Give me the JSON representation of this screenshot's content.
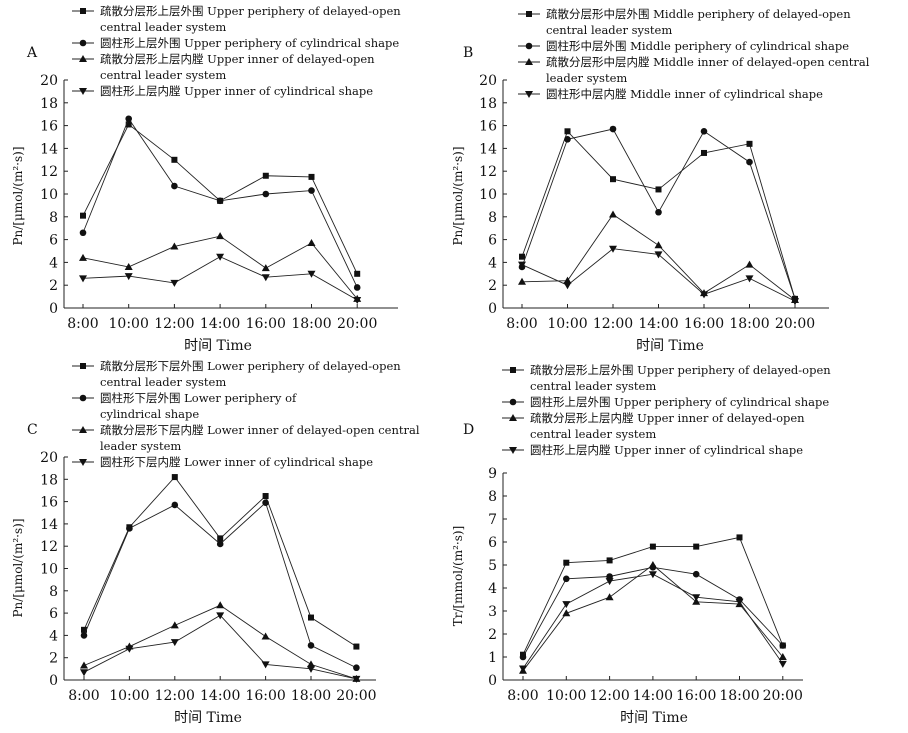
{
  "panels": [
    {
      "letter": "A",
      "xlabel": "时间 Time",
      "ylabel": "Pn/[μmol/(m²·s)]",
      "legend": [
        "疏散分层形上层外围 Upper periphery of delayed-open",
        "central leader system",
        "圆柱形上层外围 Upper periphery of cylindrical shape",
        "疏散分层形上层内膛 Upper inner of delayed-open",
        "central leader system",
        "圆柱形上层内膛 Upper inner of cylindrical shape"
      ]
    },
    {
      "letter": "B",
      "xlabel": "时间 Time",
      "ylabel": "Pn/[μmol/(m²·s)]",
      "legend": [
        "疏散分层形中层外围 Middle periphery of delayed-open",
        "central leader system",
        "圆柱形中层外围 Middle periphery of cylindrical shape",
        "疏散分层形中层内膛 Middle inner of delayed-open central",
        "leader system",
        "圆柱形中层内膛 Middle inner of cylindrical shape"
      ]
    },
    {
      "letter": "C",
      "xlabel": "时间 Time",
      "ylabel": "Pn/[μmol/(m²·s)]",
      "legend": [
        "疏散分层形下层外围 Lower periphery of delayed-open",
        "central leader system",
        "圆柱形下层外围 Lower periphery of",
        "cylindrical shape",
        "疏散分层形下层内膛 Lower inner of delayed-open central",
        "leader system",
        "圆柱形下层内膛 Lower inner of cylindrical shape"
      ]
    },
    {
      "letter": "D",
      "xlabel": "时间 Time",
      "ylabel": "Tr/[mmol/(m²·s)]",
      "legend": [
        "疏散分层形上层外围 Upper periphery of delayed-open",
        "central leader system",
        "圆柱形上层外围 Upper periphery of cylindrical shape",
        "疏散分层形上层内膛 Upper inner of delayed-open",
        "central leader system",
        "圆柱形上层内膛 Upper inner of cylindrical shape"
      ]
    }
  ],
  "chart_data": [
    {
      "type": "line",
      "xlabel": "时间 Time",
      "ylabel": "Pn/[μmol/(m²·s)]",
      "categories": [
        "8:00",
        "10:00",
        "12:00",
        "14:00",
        "16:00",
        "18:00",
        "20:00"
      ],
      "ylim": [
        0,
        20
      ],
      "yticks": [
        0,
        2,
        4,
        6,
        8,
        10,
        12,
        14,
        16,
        18,
        20
      ],
      "series": [
        {
          "name": "疏散分层形上层外围 Upper periphery of delayed-open central leader system",
          "marker": "square",
          "values": [
            8.1,
            16.1,
            13.0,
            9.4,
            11.6,
            11.5,
            3.0
          ]
        },
        {
          "name": "圆柱形上层外围 Upper periphery of cylindrical shape",
          "marker": "circle",
          "values": [
            6.6,
            16.6,
            10.7,
            9.4,
            10.0,
            10.3,
            1.8
          ]
        },
        {
          "name": "疏散分层形上层内膛 Upper inner of delayed-open central leader system",
          "marker": "triangle-up",
          "values": [
            4.4,
            3.6,
            5.4,
            6.3,
            3.5,
            5.7,
            0.8
          ]
        },
        {
          "name": "圆柱形上层内膛 Upper inner of cylindrical shape",
          "marker": "triangle-down",
          "values": [
            2.6,
            2.8,
            2.2,
            4.5,
            2.7,
            3.0,
            0.7
          ]
        }
      ]
    },
    {
      "type": "line",
      "xlabel": "时间 Time",
      "ylabel": "Pn/[μmol/(m²·s)]",
      "categories": [
        "8:00",
        "10:00",
        "12:00",
        "14:00",
        "16:00",
        "18:00",
        "20:00"
      ],
      "ylim": [
        0,
        20
      ],
      "yticks": [
        0,
        2,
        4,
        6,
        8,
        10,
        12,
        14,
        16,
        18,
        20
      ],
      "series": [
        {
          "name": "疏散分层形中层外围 Middle periphery of delayed-open central leader system",
          "marker": "square",
          "values": [
            4.5,
            15.5,
            11.3,
            10.4,
            13.6,
            14.4,
            0.8
          ]
        },
        {
          "name": "圆柱形中层外围 Middle periphery of cylindrical shape",
          "marker": "circle",
          "values": [
            3.6,
            14.8,
            15.7,
            8.4,
            15.5,
            12.8,
            0.8
          ]
        },
        {
          "name": "疏散分层形中层内膛 Middle inner of delayed-open central leader system",
          "marker": "triangle-up",
          "values": [
            2.3,
            2.4,
            8.2,
            5.5,
            1.3,
            3.8,
            0.7
          ]
        },
        {
          "name": "圆柱形中层内膛 Middle inner of cylindrical shape",
          "marker": "triangle-down",
          "values": [
            3.8,
            2.0,
            5.2,
            4.7,
            1.2,
            2.6,
            0.6
          ]
        }
      ]
    },
    {
      "type": "line",
      "xlabel": "时间 Time",
      "ylabel": "Pn/[μmol/(m²·s)]",
      "categories": [
        "8:00",
        "10:00",
        "12:00",
        "14:00",
        "16:00",
        "18:00",
        "20:00"
      ],
      "ylim": [
        0,
        20
      ],
      "yticks": [
        0,
        2,
        4,
        6,
        8,
        10,
        12,
        14,
        16,
        18,
        20
      ],
      "series": [
        {
          "name": "疏散分层形下层外围 Lower periphery of delayed-open central leader system",
          "marker": "square",
          "values": [
            4.5,
            13.7,
            18.2,
            12.7,
            16.5,
            5.6,
            3.0
          ]
        },
        {
          "name": "圆柱形下层外围 Lower periphery of cylindrical shape",
          "marker": "circle",
          "values": [
            4.0,
            13.6,
            15.7,
            12.2,
            15.9,
            3.1,
            1.1
          ]
        },
        {
          "name": "疏散分层形下层内膛 Lower inner of delayed-open central leader system",
          "marker": "triangle-up",
          "values": [
            1.3,
            3.0,
            4.9,
            6.7,
            3.9,
            1.4,
            0.1
          ]
        },
        {
          "name": "圆柱形下层内膛 Lower inner of cylindrical shape",
          "marker": "triangle-down",
          "values": [
            0.7,
            2.8,
            3.4,
            5.8,
            1.4,
            1.0,
            0.1
          ]
        }
      ]
    },
    {
      "type": "line",
      "xlabel": "时间 Time",
      "ylabel": "Tr/[mmol/(m²·s)]",
      "categories": [
        "8:00",
        "10:00",
        "12:00",
        "14:00",
        "16:00",
        "18:00",
        "20:00"
      ],
      "ylim": [
        0,
        9
      ],
      "yticks": [
        0,
        1,
        2,
        3,
        4,
        5,
        6,
        7,
        8,
        9
      ],
      "series": [
        {
          "name": "疏散分层形上层外围 Upper periphery of delayed-open central leader system",
          "marker": "square",
          "values": [
            1.1,
            5.1,
            5.2,
            5.8,
            5.8,
            6.2,
            1.5
          ]
        },
        {
          "name": "圆柱形上层外围 Upper periphery of cylindrical shape",
          "marker": "circle",
          "values": [
            1.0,
            4.4,
            4.5,
            4.9,
            4.6,
            3.5,
            1.5
          ]
        },
        {
          "name": "疏散分层形上层内膛 Upper inner of delayed-open central leader system",
          "marker": "triangle-up",
          "values": [
            0.4,
            2.9,
            3.6,
            5.0,
            3.4,
            3.3,
            1.0
          ]
        },
        {
          "name": "圆柱形上层内膛 Upper inner of cylindrical shape",
          "marker": "triangle-down",
          "values": [
            0.5,
            3.3,
            4.3,
            4.6,
            3.6,
            3.4,
            0.7
          ]
        }
      ]
    }
  ]
}
